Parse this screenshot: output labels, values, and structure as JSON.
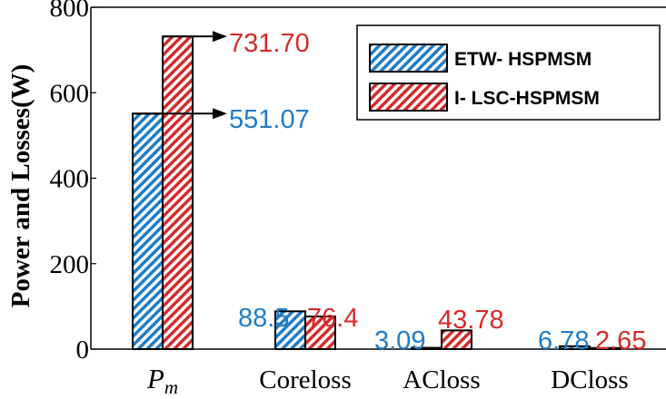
{
  "chart_data": {
    "type": "bar",
    "ylabel": "Power and Losses(W)",
    "xlabel": "",
    "ylim": [
      0,
      800
    ],
    "yticks": [
      "0",
      "200",
      "400",
      "600",
      "800"
    ],
    "categories": [
      {
        "main": "P",
        "sub": "m"
      },
      {
        "main": "Coreloss",
        "sub": ""
      },
      {
        "main": "ACloss",
        "sub": ""
      },
      {
        "main": "DCloss",
        "sub": ""
      }
    ],
    "series": [
      {
        "name": "ETW- HSPMSM",
        "color": "#1f7cc6",
        "values": [
          551.07,
          88.5,
          3.09,
          6.78
        ],
        "labels": [
          "551.07",
          "88.5",
          "3.09",
          "6.78"
        ]
      },
      {
        "name": "I- LSC-HSPMSM",
        "color": "#d42a2a",
        "values": [
          731.7,
          76.4,
          43.78,
          2.65
        ],
        "labels": [
          "731.70",
          "76.4",
          "43.78",
          "2.65"
        ]
      }
    ],
    "legend_position": "top-right",
    "grid": false
  }
}
